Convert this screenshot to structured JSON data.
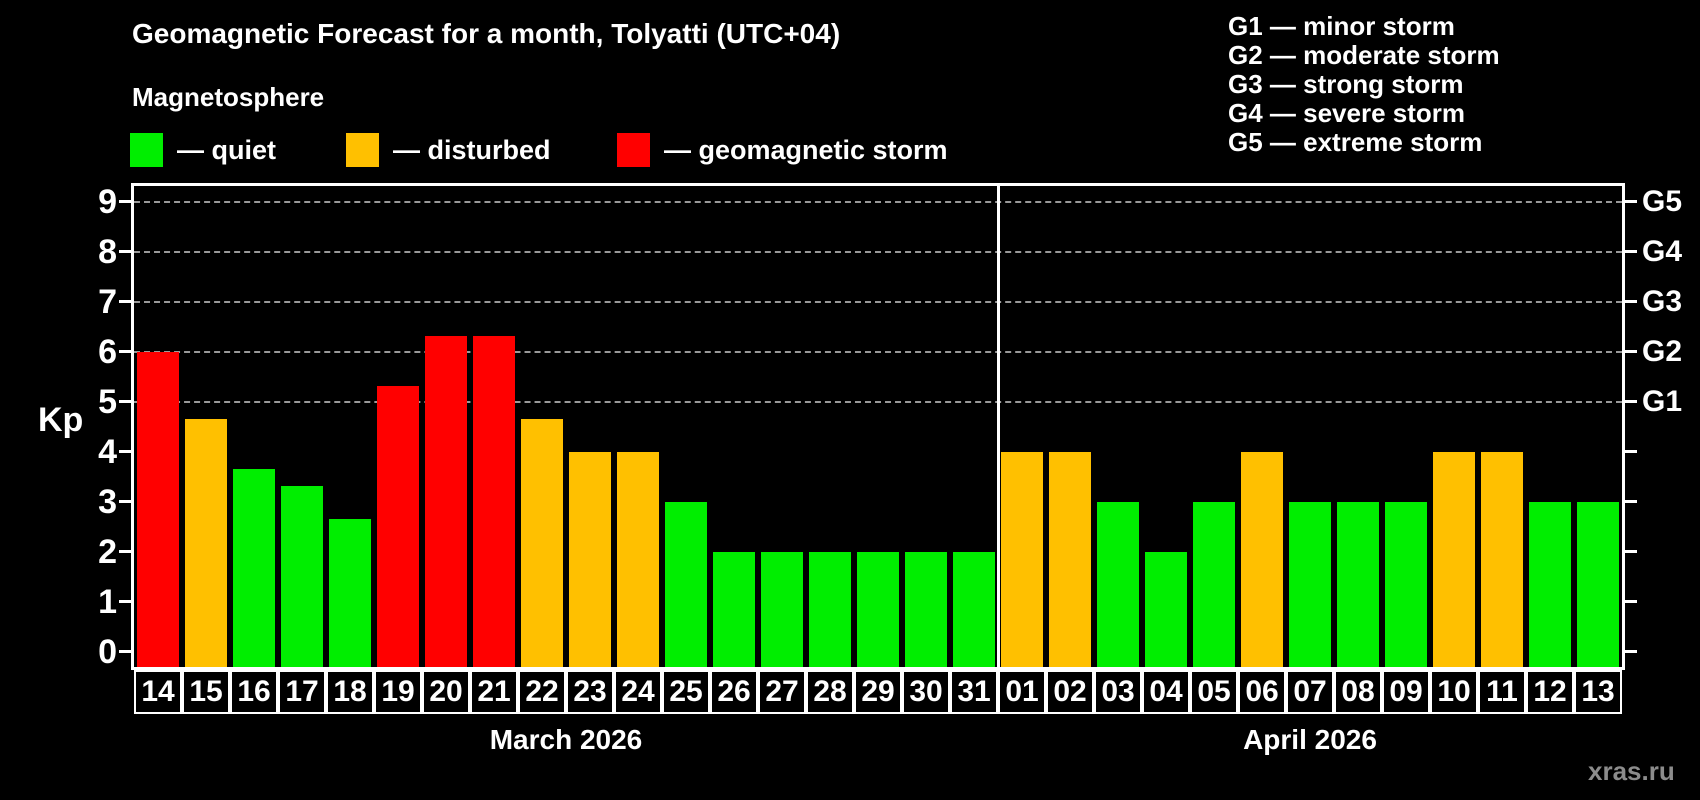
{
  "title": "Geomagnetic Forecast for a month, Tolyatti (UTC+04)",
  "subtitle": "Magnetosphere",
  "legend": {
    "items": [
      {
        "key": "quiet",
        "label": "— quiet"
      },
      {
        "key": "disturbed",
        "label": "— disturbed"
      },
      {
        "key": "storm",
        "label": "— geomagnetic storm"
      }
    ]
  },
  "g_legend": [
    "G1 — minor storm",
    "G2 — moderate storm",
    "G3 — strong storm",
    "G4 — severe storm",
    "G5 — extreme storm"
  ],
  "watermark": "xras.ru",
  "colors": {
    "quiet": "#00EE00",
    "disturbed": "#FFC000",
    "storm": "#FF0000",
    "background": "#000000",
    "axis": "#FFFFFF",
    "grid": "#9A9A9A",
    "watermark": "#8C8C8C"
  },
  "chart_data": {
    "type": "bar",
    "ylabel": "Kp",
    "ylim": [
      0,
      9
    ],
    "yticks": [
      0,
      1,
      2,
      3,
      4,
      5,
      6,
      7,
      8,
      9
    ],
    "grid_levels": [
      5,
      6,
      7,
      8,
      9
    ],
    "grid_style": "dashed",
    "legend_position": "top",
    "right_axis_labels": [
      {
        "text": "G1",
        "kp": 5
      },
      {
        "text": "G2",
        "kp": 6
      },
      {
        "text": "G3",
        "kp": 7
      },
      {
        "text": "G4",
        "kp": 8
      },
      {
        "text": "G5",
        "kp": 9
      }
    ],
    "months": [
      {
        "label": "March 2026",
        "bars": [
          {
            "day": "14",
            "kp": 6.0,
            "level": "storm"
          },
          {
            "day": "15",
            "kp": 4.67,
            "level": "disturbed"
          },
          {
            "day": "16",
            "kp": 3.67,
            "level": "quiet"
          },
          {
            "day": "17",
            "kp": 3.33,
            "level": "quiet"
          },
          {
            "day": "18",
            "kp": 2.67,
            "level": "quiet"
          },
          {
            "day": "19",
            "kp": 5.33,
            "level": "storm"
          },
          {
            "day": "20",
            "kp": 6.33,
            "level": "storm"
          },
          {
            "day": "21",
            "kp": 6.33,
            "level": "storm"
          },
          {
            "day": "22",
            "kp": 4.67,
            "level": "disturbed"
          },
          {
            "day": "23",
            "kp": 4.0,
            "level": "disturbed"
          },
          {
            "day": "24",
            "kp": 4.0,
            "level": "disturbed"
          },
          {
            "day": "25",
            "kp": 3.0,
            "level": "quiet"
          },
          {
            "day": "26",
            "kp": 2.0,
            "level": "quiet"
          },
          {
            "day": "27",
            "kp": 2.0,
            "level": "quiet"
          },
          {
            "day": "28",
            "kp": 2.0,
            "level": "quiet"
          },
          {
            "day": "29",
            "kp": 2.0,
            "level": "quiet"
          },
          {
            "day": "30",
            "kp": 2.0,
            "level": "quiet"
          },
          {
            "day": "31",
            "kp": 2.0,
            "level": "quiet"
          }
        ]
      },
      {
        "label": "April 2026",
        "bars": [
          {
            "day": "01",
            "kp": 4.0,
            "level": "disturbed"
          },
          {
            "day": "02",
            "kp": 4.0,
            "level": "disturbed"
          },
          {
            "day": "03",
            "kp": 3.0,
            "level": "quiet"
          },
          {
            "day": "04",
            "kp": 2.0,
            "level": "quiet"
          },
          {
            "day": "05",
            "kp": 3.0,
            "level": "quiet"
          },
          {
            "day": "06",
            "kp": 4.0,
            "level": "disturbed"
          },
          {
            "day": "07",
            "kp": 3.0,
            "level": "quiet"
          },
          {
            "day": "08",
            "kp": 3.0,
            "level": "quiet"
          },
          {
            "day": "09",
            "kp": 3.0,
            "level": "quiet"
          },
          {
            "day": "10",
            "kp": 4.0,
            "level": "disturbed"
          },
          {
            "day": "11",
            "kp": 4.0,
            "level": "disturbed"
          },
          {
            "day": "12",
            "kp": 3.0,
            "level": "quiet"
          },
          {
            "day": "13",
            "kp": 3.0,
            "level": "quiet"
          }
        ]
      }
    ]
  }
}
